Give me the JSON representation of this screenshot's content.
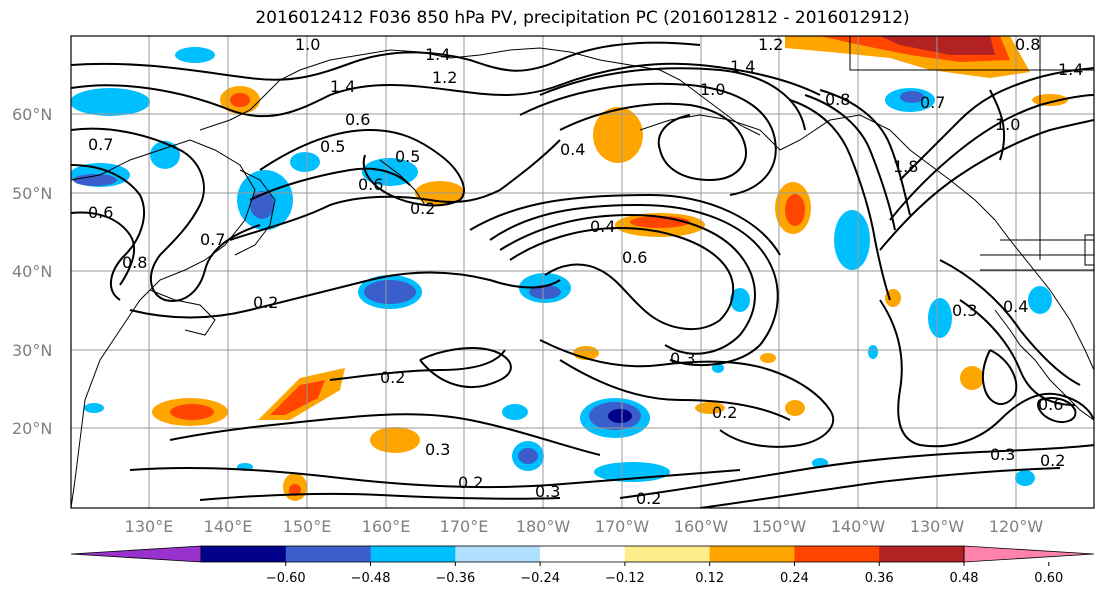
{
  "title": "2016012412 F036 850 hPa PV, precipitation PC (2016012812 - 2016012912)",
  "lat_labels": [
    "60°N",
    "50°N",
    "40°N",
    "30°N",
    "20°N"
  ],
  "lon_labels": [
    "130°E",
    "140°E",
    "150°E",
    "160°E",
    "170°E",
    "180°W",
    "170°W",
    "160°W",
    "150°W",
    "140°W",
    "130°W",
    "120°W"
  ],
  "contour_labels": [
    "1.0",
    "1.4",
    "1.2",
    "1.4",
    "1.0",
    "1.4",
    "1.2",
    "0.8",
    "1.4",
    "0.8",
    "0.7",
    "0.5",
    "0.6",
    "0.5",
    "0.6",
    "0.4",
    "0.4",
    "0.6",
    "0.2",
    "0.2",
    "0.2",
    "0.3",
    "0.2",
    "0.3",
    "0.2",
    "0.2",
    "0.3",
    "0.3",
    "0.4",
    "0.6",
    "0.3",
    "0.2",
    "1.0",
    "1.8",
    "0.7",
    "0.6",
    "0.7",
    "0.8"
  ],
  "colorbar": {
    "colors": [
      "#9932cc",
      "#00008b",
      "#3a5fcd",
      "#00bfff",
      "#b0e2ff",
      "#ffffff",
      "#ffec8b",
      "#ffa500",
      "#ff4500",
      "#b22222",
      "#ff82ab"
    ],
    "tick_labels": [
      "−0.60",
      "−0.48",
      "−0.36",
      "−0.24",
      "−0.12",
      "0.12",
      "0.24",
      "0.36",
      "0.48",
      "0.60"
    ]
  }
}
